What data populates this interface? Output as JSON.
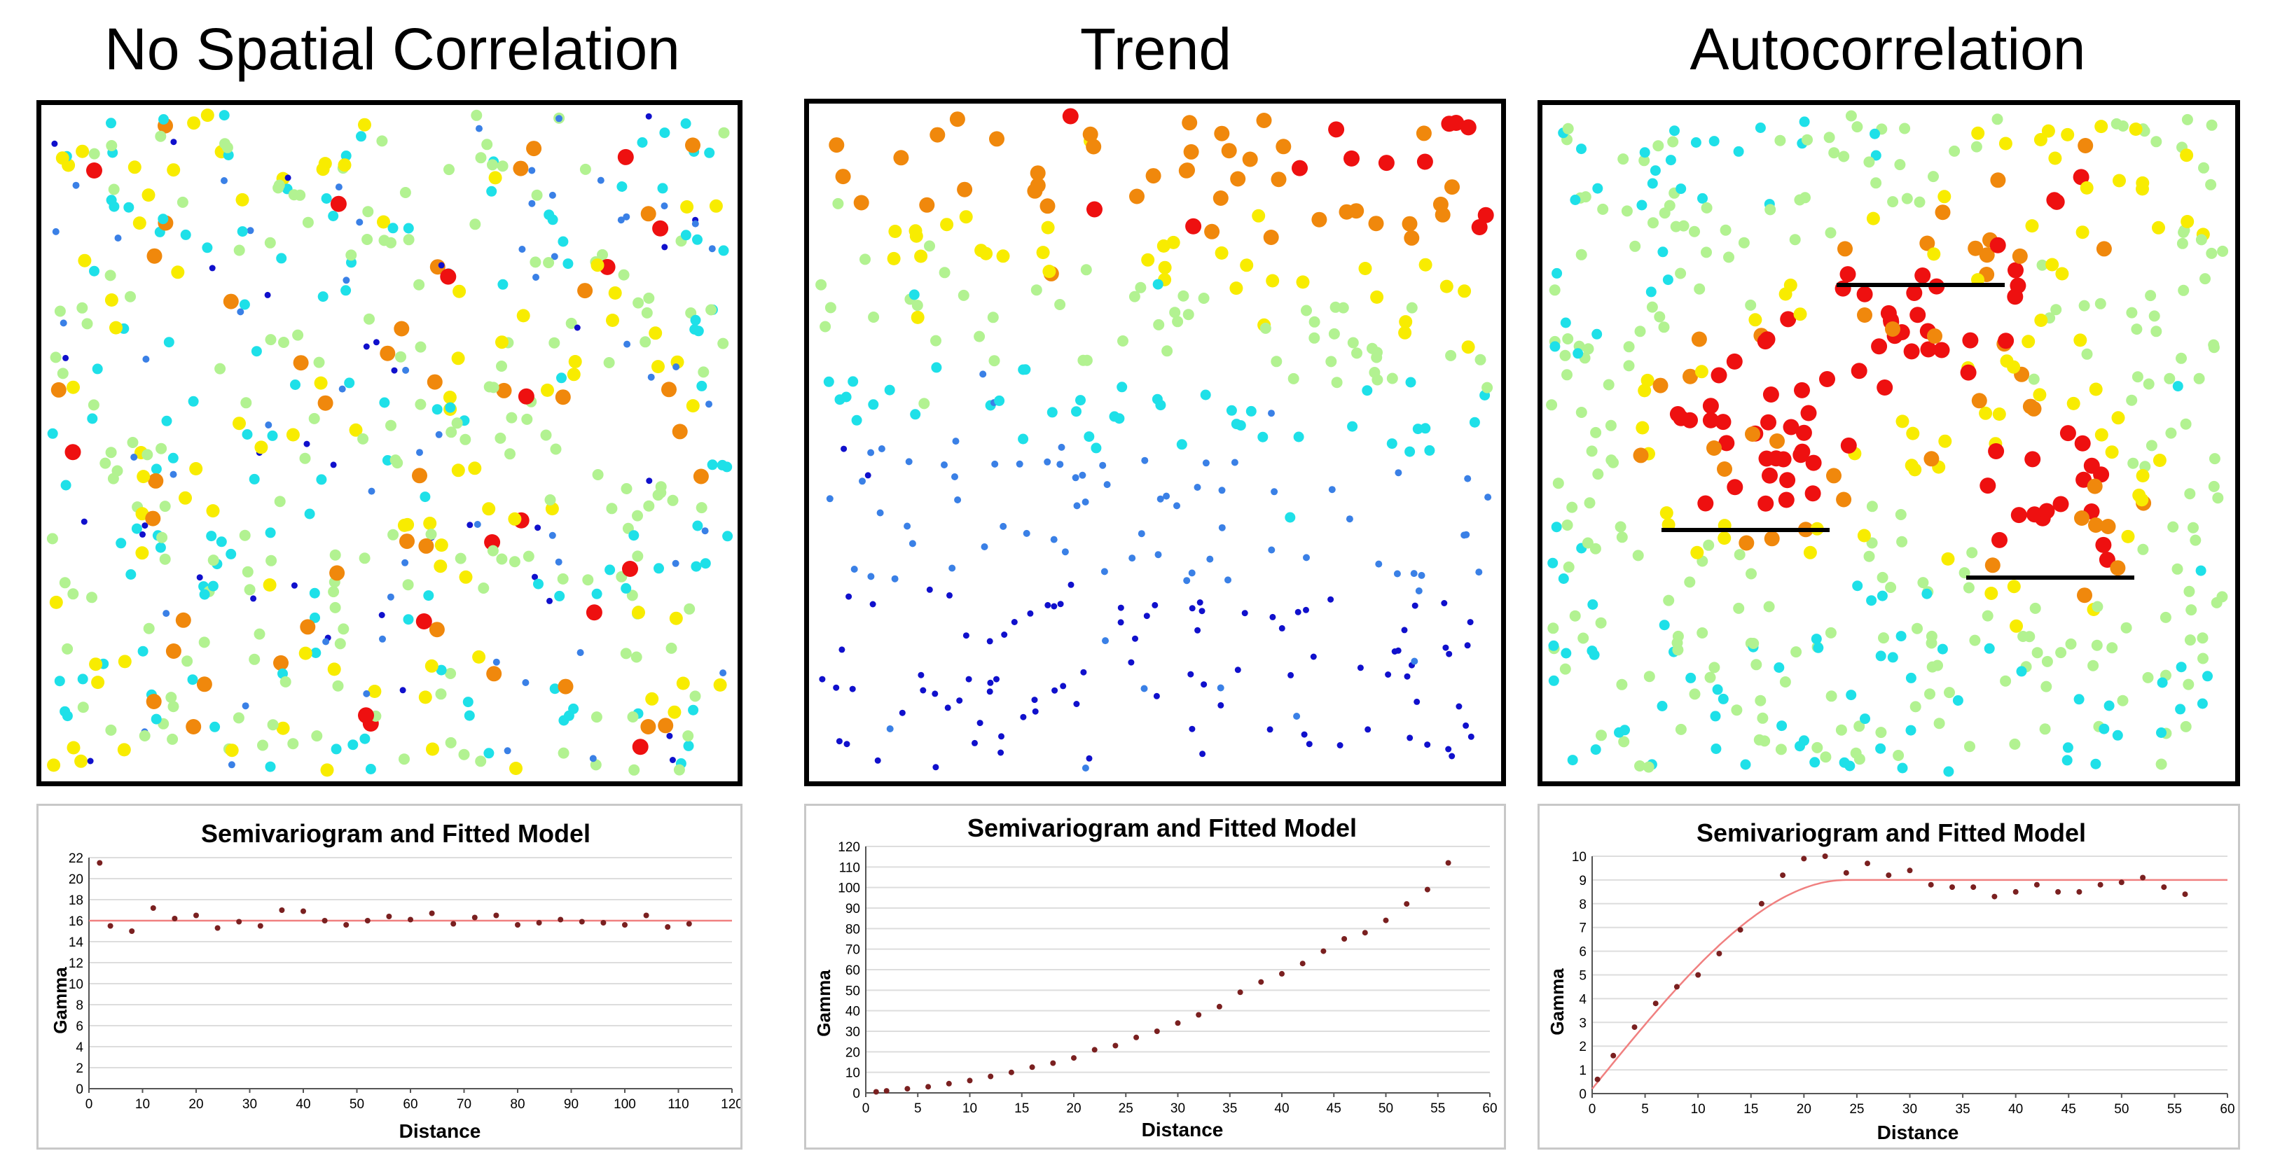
{
  "panels": [
    {
      "title": "No Spatial Correlation"
    },
    {
      "title": "Trend"
    },
    {
      "title": "Autocorrelation"
    }
  ],
  "colors": {
    "dark_blue": "#1010cc",
    "mid_blue": "#3a80e6",
    "cyan": "#1ee0e8",
    "light_green": "#b2f291",
    "yellow": "#f8ec00",
    "orange": "#f0880c",
    "red": "#ee1010",
    "model_line": "#f08080",
    "point": "#7a2020",
    "grid": "#dddddd"
  },
  "chart_data": [
    {
      "type": "scatter",
      "title": "Semivariogram and Fitted Model",
      "xlabel": "Distance",
      "ylabel": "Gamma",
      "xlim": [
        0,
        120
      ],
      "ylim": [
        0,
        22
      ],
      "xticks": [
        0,
        10,
        20,
        30,
        40,
        50,
        60,
        70,
        80,
        90,
        100,
        110,
        120
      ],
      "yticks": [
        0,
        2,
        4,
        6,
        8,
        10,
        12,
        14,
        16,
        18,
        20,
        22
      ],
      "grid": true,
      "points": [
        [
          2,
          21.5
        ],
        [
          4,
          15.5
        ],
        [
          8,
          15
        ],
        [
          12,
          17.2
        ],
        [
          16,
          16.2
        ],
        [
          20,
          16.5
        ],
        [
          24,
          15.3
        ],
        [
          28,
          15.9
        ],
        [
          32,
          15.5
        ],
        [
          36,
          17
        ],
        [
          40,
          16.9
        ],
        [
          44,
          16
        ],
        [
          48,
          15.6
        ],
        [
          52,
          16
        ],
        [
          56,
          16.4
        ],
        [
          60,
          16.1
        ],
        [
          64,
          16.7
        ],
        [
          68,
          15.7
        ],
        [
          72,
          16.3
        ],
        [
          76,
          16.5
        ],
        [
          80,
          15.6
        ],
        [
          84,
          15.8
        ],
        [
          88,
          16.1
        ],
        [
          92,
          15.9
        ],
        [
          96,
          15.8
        ],
        [
          100,
          15.6
        ],
        [
          104,
          16.5
        ],
        [
          108,
          15.4
        ],
        [
          112,
          15.7
        ]
      ],
      "model": {
        "kind": "nugget",
        "sill": 16
      }
    },
    {
      "type": "scatter",
      "title": "Semivariogram and Fitted Model",
      "xlabel": "Distance",
      "ylabel": "Gamma",
      "xlim": [
        0,
        60
      ],
      "ylim": [
        0,
        120
      ],
      "xticks": [
        0,
        5,
        10,
        15,
        20,
        25,
        30,
        35,
        40,
        45,
        50,
        55,
        60
      ],
      "yticks": [
        0,
        10,
        20,
        30,
        40,
        50,
        60,
        70,
        80,
        90,
        100,
        110,
        120
      ],
      "grid": true,
      "points": [
        [
          1,
          0.5
        ],
        [
          2,
          1
        ],
        [
          4,
          2
        ],
        [
          6,
          3
        ],
        [
          8,
          4.5
        ],
        [
          10,
          6
        ],
        [
          12,
          8
        ],
        [
          14,
          10
        ],
        [
          16,
          12.5
        ],
        [
          18,
          14.5
        ],
        [
          20,
          17
        ],
        [
          22,
          21
        ],
        [
          24,
          23
        ],
        [
          26,
          27
        ],
        [
          28,
          30
        ],
        [
          30,
          34
        ],
        [
          32,
          38
        ],
        [
          34,
          42
        ],
        [
          36,
          49
        ],
        [
          38,
          54
        ],
        [
          40,
          58
        ],
        [
          42,
          63
        ],
        [
          44,
          69
        ],
        [
          46,
          75
        ],
        [
          48,
          78
        ],
        [
          50,
          84
        ],
        [
          52,
          92
        ],
        [
          54,
          99
        ],
        [
          56,
          112
        ]
      ],
      "model": null
    },
    {
      "type": "scatter",
      "title": "Semivariogram and Fitted Model",
      "xlabel": "Distance",
      "ylabel": "Gamma",
      "xlim": [
        0,
        60
      ],
      "ylim": [
        0,
        10
      ],
      "xticks": [
        0,
        5,
        10,
        15,
        20,
        25,
        30,
        35,
        40,
        45,
        50,
        55,
        60
      ],
      "yticks": [
        0,
        1,
        2,
        3,
        4,
        5,
        6,
        7,
        8,
        9,
        10
      ],
      "grid": true,
      "points": [
        [
          0.5,
          0.6
        ],
        [
          2,
          1.6
        ],
        [
          4,
          2.8
        ],
        [
          6,
          3.8
        ],
        [
          8,
          4.5
        ],
        [
          10,
          5
        ],
        [
          12,
          5.9
        ],
        [
          14,
          6.9
        ],
        [
          16,
          8
        ],
        [
          18,
          9.2
        ],
        [
          20,
          9.9
        ],
        [
          22,
          10
        ],
        [
          24,
          9.3
        ],
        [
          26,
          9.7
        ],
        [
          28,
          9.2
        ],
        [
          30,
          9.4
        ],
        [
          32,
          8.8
        ],
        [
          34,
          8.7
        ],
        [
          36,
          8.7
        ],
        [
          38,
          8.3
        ],
        [
          40,
          8.5
        ],
        [
          42,
          8.8
        ],
        [
          44,
          8.5
        ],
        [
          46,
          8.5
        ],
        [
          48,
          8.8
        ],
        [
          50,
          8.9
        ],
        [
          52,
          9.1
        ],
        [
          54,
          8.7
        ],
        [
          56,
          8.4
        ]
      ],
      "model": {
        "kind": "spherical",
        "nugget": 0.2,
        "sill": 9,
        "range": 24
      }
    }
  ]
}
